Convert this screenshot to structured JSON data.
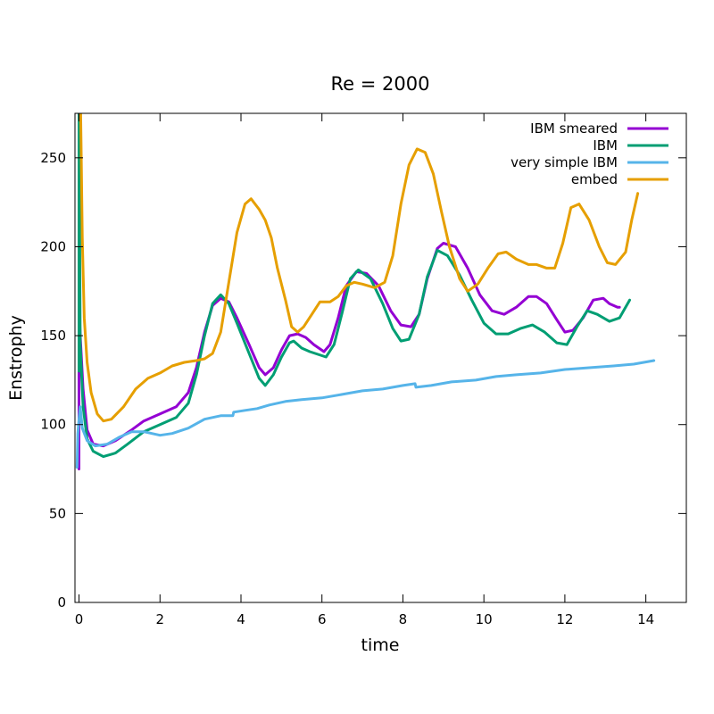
{
  "chart_data": {
    "type": "line",
    "title": "Re = 2000",
    "xlabel": "time",
    "ylabel": "Enstrophy",
    "xlim": [
      -0.1,
      15
    ],
    "ylim": [
      0,
      275
    ],
    "xticks": [
      "0",
      "2",
      "4",
      "6",
      "8",
      "10",
      "12",
      "14"
    ],
    "yticks": [
      "0",
      "50",
      "100",
      "150",
      "200",
      "250"
    ],
    "grid": false,
    "legend_position": "top-right",
    "series": [
      {
        "name": "IBM smeared",
        "color": "#9400d3",
        "points": [
          [
            0.0,
            75
          ],
          [
            0.0,
            168
          ],
          [
            0.03,
            150
          ],
          [
            0.1,
            120
          ],
          [
            0.2,
            97
          ],
          [
            0.35,
            89
          ],
          [
            0.6,
            88
          ],
          [
            0.9,
            91
          ],
          [
            1.3,
            97
          ],
          [
            1.6,
            102
          ],
          [
            2.0,
            106
          ],
          [
            2.4,
            110
          ],
          [
            2.7,
            118
          ],
          [
            2.9,
            132
          ],
          [
            3.1,
            152
          ],
          [
            3.3,
            167
          ],
          [
            3.5,
            171
          ],
          [
            3.7,
            169
          ],
          [
            3.9,
            160
          ],
          [
            4.2,
            145
          ],
          [
            4.45,
            132
          ],
          [
            4.6,
            128
          ],
          [
            4.8,
            132
          ],
          [
            5.0,
            142
          ],
          [
            5.2,
            150
          ],
          [
            5.4,
            151
          ],
          [
            5.6,
            149
          ],
          [
            5.8,
            145
          ],
          [
            6.05,
            141
          ],
          [
            6.2,
            145
          ],
          [
            6.4,
            160
          ],
          [
            6.6,
            178
          ],
          [
            6.85,
            186
          ],
          [
            7.1,
            185
          ],
          [
            7.4,
            178
          ],
          [
            7.7,
            164
          ],
          [
            7.95,
            156
          ],
          [
            8.2,
            155
          ],
          [
            8.4,
            162
          ],
          [
            8.6,
            182
          ],
          [
            8.85,
            199
          ],
          [
            9.0,
            202
          ],
          [
            9.3,
            200
          ],
          [
            9.6,
            188
          ],
          [
            9.9,
            173
          ],
          [
            10.2,
            164
          ],
          [
            10.5,
            162
          ],
          [
            10.8,
            166
          ],
          [
            11.1,
            172
          ],
          [
            11.3,
            172
          ],
          [
            11.55,
            168
          ],
          [
            11.8,
            159
          ],
          [
            12.0,
            152
          ],
          [
            12.2,
            153
          ],
          [
            12.45,
            160
          ],
          [
            12.7,
            170
          ],
          [
            12.95,
            171
          ],
          [
            13.1,
            168
          ],
          [
            13.3,
            166
          ],
          [
            13.35,
            166
          ]
        ]
      },
      {
        "name": "IBM",
        "color": "#009e73",
        "points": [
          [
            0.0,
            130
          ],
          [
            0.0,
            290
          ],
          [
            0.03,
            145
          ],
          [
            0.1,
            110
          ],
          [
            0.2,
            92
          ],
          [
            0.35,
            85
          ],
          [
            0.6,
            82
          ],
          [
            0.9,
            84
          ],
          [
            1.2,
            89
          ],
          [
            1.6,
            96
          ],
          [
            2.0,
            100
          ],
          [
            2.4,
            104
          ],
          [
            2.7,
            112
          ],
          [
            2.9,
            128
          ],
          [
            3.1,
            150
          ],
          [
            3.3,
            168
          ],
          [
            3.5,
            173
          ],
          [
            3.7,
            168
          ],
          [
            3.9,
            157
          ],
          [
            4.2,
            140
          ],
          [
            4.45,
            126
          ],
          [
            4.6,
            122
          ],
          [
            4.8,
            128
          ],
          [
            5.0,
            138
          ],
          [
            5.2,
            146
          ],
          [
            5.3,
            147
          ],
          [
            5.5,
            143
          ],
          [
            5.7,
            141
          ],
          [
            6.1,
            138
          ],
          [
            6.3,
            145
          ],
          [
            6.5,
            163
          ],
          [
            6.7,
            182
          ],
          [
            6.9,
            187
          ],
          [
            7.2,
            182
          ],
          [
            7.5,
            168
          ],
          [
            7.75,
            154
          ],
          [
            7.95,
            147
          ],
          [
            8.15,
            148
          ],
          [
            8.4,
            162
          ],
          [
            8.6,
            183
          ],
          [
            8.85,
            198
          ],
          [
            9.1,
            195
          ],
          [
            9.4,
            184
          ],
          [
            9.7,
            170
          ],
          [
            10.0,
            157
          ],
          [
            10.3,
            151
          ],
          [
            10.6,
            151
          ],
          [
            10.9,
            154
          ],
          [
            11.2,
            156
          ],
          [
            11.5,
            152
          ],
          [
            11.8,
            146
          ],
          [
            12.05,
            145
          ],
          [
            12.3,
            155
          ],
          [
            12.55,
            164
          ],
          [
            12.8,
            162
          ],
          [
            13.1,
            158
          ],
          [
            13.35,
            160
          ],
          [
            13.6,
            170
          ]
        ]
      },
      {
        "name": "very simple IBM",
        "color": "#56b4e9",
        "points": [
          [
            -0.05,
            76
          ],
          [
            -0.03,
            95
          ],
          [
            0.0,
            103
          ],
          [
            0.03,
            110
          ],
          [
            0.08,
            98
          ],
          [
            0.2,
            91
          ],
          [
            0.4,
            88
          ],
          [
            0.7,
            89
          ],
          [
            1.0,
            93
          ],
          [
            1.3,
            96
          ],
          [
            1.6,
            96
          ],
          [
            2.0,
            94
          ],
          [
            2.3,
            95
          ],
          [
            2.7,
            98
          ],
          [
            3.1,
            103
          ],
          [
            3.5,
            105
          ],
          [
            3.8,
            105
          ],
          [
            3.82,
            107
          ],
          [
            4.1,
            108
          ],
          [
            4.4,
            109
          ],
          [
            4.7,
            111
          ],
          [
            5.1,
            113
          ],
          [
            5.5,
            114
          ],
          [
            6.0,
            115
          ],
          [
            6.5,
            117
          ],
          [
            7.0,
            119
          ],
          [
            7.5,
            120
          ],
          [
            8.0,
            122
          ],
          [
            8.3,
            123
          ],
          [
            8.32,
            121
          ],
          [
            8.7,
            122
          ],
          [
            9.2,
            124
          ],
          [
            9.8,
            125
          ],
          [
            10.3,
            127
          ],
          [
            10.8,
            128
          ],
          [
            11.4,
            129
          ],
          [
            12.0,
            131
          ],
          [
            12.6,
            132
          ],
          [
            13.2,
            133
          ],
          [
            13.7,
            134
          ],
          [
            14.2,
            136
          ]
        ]
      },
      {
        "name": "embed",
        "color": "#e69f00",
        "points": [
          [
            0.02,
            310
          ],
          [
            0.05,
            260
          ],
          [
            0.08,
            205
          ],
          [
            0.13,
            160
          ],
          [
            0.2,
            135
          ],
          [
            0.3,
            118
          ],
          [
            0.45,
            106
          ],
          [
            0.6,
            102
          ],
          [
            0.8,
            103
          ],
          [
            1.1,
            110
          ],
          [
            1.4,
            120
          ],
          [
            1.7,
            126
          ],
          [
            2.0,
            129
          ],
          [
            2.3,
            133
          ],
          [
            2.6,
            135
          ],
          [
            2.9,
            136
          ],
          [
            3.1,
            137
          ],
          [
            3.3,
            140
          ],
          [
            3.5,
            152
          ],
          [
            3.7,
            180
          ],
          [
            3.9,
            208
          ],
          [
            4.1,
            224
          ],
          [
            4.25,
            227
          ],
          [
            4.45,
            221
          ],
          [
            4.6,
            215
          ],
          [
            4.75,
            205
          ],
          [
            4.9,
            188
          ],
          [
            5.1,
            170
          ],
          [
            5.25,
            155
          ],
          [
            5.4,
            152
          ],
          [
            5.55,
            155
          ],
          [
            5.75,
            162
          ],
          [
            5.95,
            169
          ],
          [
            6.2,
            169
          ],
          [
            6.4,
            172
          ],
          [
            6.6,
            178
          ],
          [
            6.8,
            180
          ],
          [
            7.0,
            179
          ],
          [
            7.3,
            177
          ],
          [
            7.55,
            180
          ],
          [
            7.75,
            195
          ],
          [
            7.95,
            224
          ],
          [
            8.15,
            246
          ],
          [
            8.35,
            255
          ],
          [
            8.55,
            253
          ],
          [
            8.75,
            241
          ],
          [
            8.95,
            220
          ],
          [
            9.15,
            200
          ],
          [
            9.4,
            182
          ],
          [
            9.6,
            175
          ],
          [
            9.85,
            179
          ],
          [
            10.1,
            188
          ],
          [
            10.35,
            196
          ],
          [
            10.55,
            197
          ],
          [
            10.8,
            193
          ],
          [
            11.1,
            190
          ],
          [
            11.3,
            190
          ],
          [
            11.55,
            188
          ],
          [
            11.75,
            188
          ],
          [
            11.95,
            202
          ],
          [
            12.15,
            222
          ],
          [
            12.35,
            224
          ],
          [
            12.6,
            215
          ],
          [
            12.85,
            200
          ],
          [
            13.05,
            191
          ],
          [
            13.25,
            190
          ],
          [
            13.5,
            197
          ],
          [
            13.65,
            215
          ],
          [
            13.8,
            230
          ]
        ]
      }
    ]
  }
}
